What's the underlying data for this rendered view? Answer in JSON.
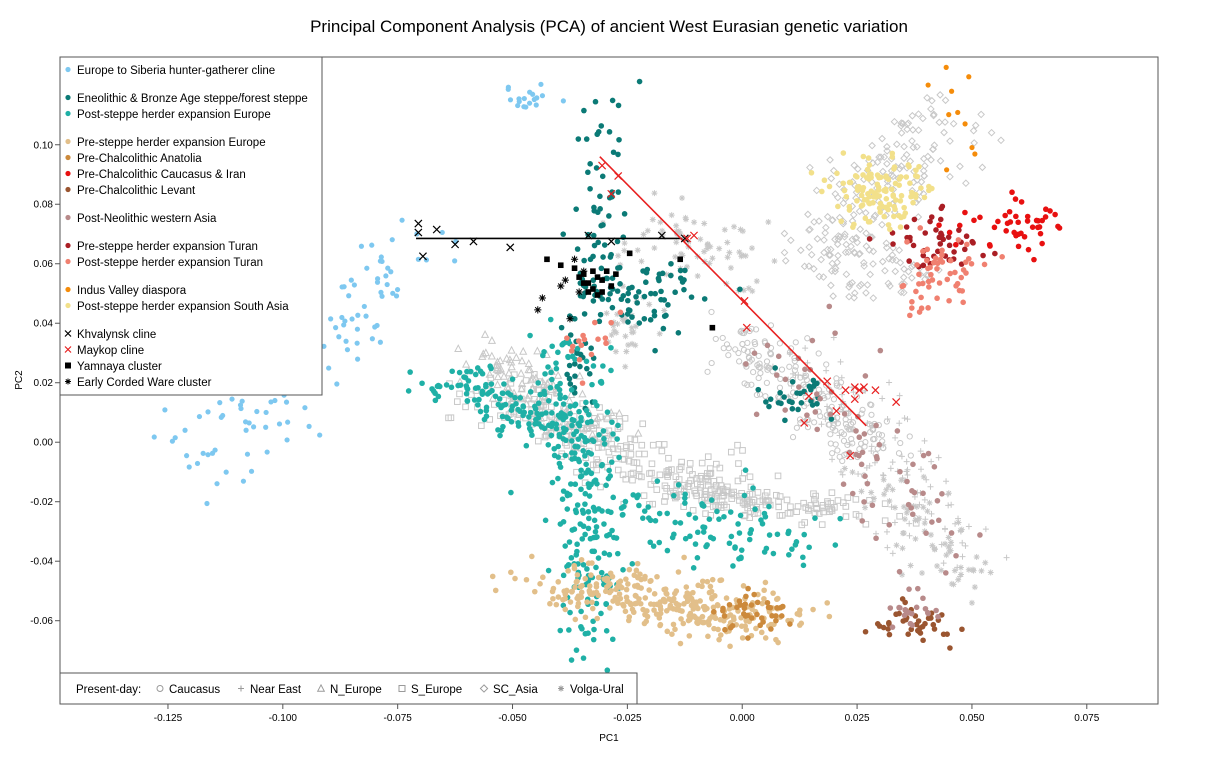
{
  "chart_data": {
    "type": "scatter",
    "title": "Principal Component Analysis (PCA) of ancient West Eurasian genetic variation",
    "xlabel": "PC1",
    "ylabel": "PC2",
    "xlim": [
      -0.1485,
      0.0905
    ],
    "ylim": [
      -0.088,
      0.1295
    ],
    "xticks": [
      -0.125,
      -0.1,
      -0.075,
      -0.05,
      -0.025,
      0.0,
      0.025,
      0.05,
      0.075
    ],
    "xtick_labels": [
      "-0.125",
      "-0.100",
      "-0.075",
      "-0.050",
      "-0.025",
      "0.000",
      "0.025",
      "0.050",
      "0.075"
    ],
    "yticks": [
      -0.06,
      -0.04,
      -0.02,
      0.0,
      0.02,
      0.04,
      0.06,
      0.08,
      0.1
    ],
    "ytick_labels": [
      "-0.06",
      "-0.04",
      "-0.02",
      "0.00",
      "0.02",
      "0.04",
      "0.06",
      "0.08",
      "0.10"
    ],
    "grid": false,
    "legend_position": "top-left",
    "legend": [
      {
        "group": 1,
        "label": "Europe to Siberia hunter-gatherer cline",
        "marker": "circle",
        "color": "#7ec8f0"
      },
      {
        "group": 2,
        "label": "Eneolithic & Bronze Age steppe/forest steppe",
        "marker": "circle",
        "color": "#0b7a76"
      },
      {
        "group": 2,
        "label": "Post-steppe herder expansion Europe",
        "marker": "circle",
        "color": "#1fb0a6"
      },
      {
        "group": 3,
        "label": "Pre-steppe herder expansion Europe",
        "marker": "circle",
        "color": "#e2bf8a"
      },
      {
        "group": 3,
        "label": "Pre-Chalcolithic Anatolia",
        "marker": "circle",
        "color": "#cc8a3c"
      },
      {
        "group": 3,
        "label": "Pre-Chalcolithic Caucasus & Iran",
        "marker": "circle",
        "color": "#e81010"
      },
      {
        "group": 3,
        "label": "Pre-Chalcolithic Levant",
        "marker": "circle",
        "color": "#9a5530"
      },
      {
        "group": 4,
        "label": "Post-Neolithic western Asia",
        "marker": "circle",
        "color": "#b88a8a"
      },
      {
        "group": 5,
        "label": "Pre-steppe herder expansion Turan",
        "marker": "circle",
        "color": "#aa1e24"
      },
      {
        "group": 5,
        "label": "Post-steppe herder expansion Turan",
        "marker": "circle",
        "color": "#f08070"
      },
      {
        "group": 6,
        "label": "Indus Valley diaspora",
        "marker": "circle",
        "color": "#f58c0a"
      },
      {
        "group": 6,
        "label": "Post-steppe herder expansion South Asia",
        "marker": "circle",
        "color": "#f2e08a"
      },
      {
        "group": 7,
        "label": "Khvalynsk cline",
        "marker": "x",
        "color": "#000000"
      },
      {
        "group": 7,
        "label": "Maykop cline",
        "marker": "x",
        "color": "#e82020"
      },
      {
        "group": 7,
        "label": "Yamnaya cluster",
        "marker": "square",
        "color": "#000000"
      },
      {
        "group": 7,
        "label": "Early Corded Ware cluster",
        "marker": "asterisk",
        "color": "#000000"
      }
    ],
    "present_day_legend": {
      "label": "Present-day:",
      "items": [
        {
          "label": "Caucasus",
          "marker": "circle-open",
          "color": "#b4b4b4"
        },
        {
          "label": "Near East",
          "marker": "plus",
          "color": "#b4b4b4"
        },
        {
          "label": "N_Europe",
          "marker": "triangle-open",
          "color": "#b4b4b4"
        },
        {
          "label": "S_Europe",
          "marker": "square-open",
          "color": "#b4b4b4"
        },
        {
          "label": "SC_Asia",
          "marker": "diamond-open",
          "color": "#b4b4b4"
        },
        {
          "label": "Volga-Ural",
          "marker": "asterisk",
          "color": "#b4b4b4"
        }
      ]
    },
    "lines": [
      {
        "name": "Khvalynsk cline",
        "color": "#000000",
        "x": [
          -0.071,
          -0.013
        ],
        "y": [
          0.0685,
          0.0685
        ]
      },
      {
        "name": "Maykop cline",
        "color": "#e82020",
        "x": [
          -0.031,
          0.027
        ],
        "y": [
          0.096,
          0.0055
        ]
      }
    ],
    "series": [
      {
        "label": "Khvalynsk cline",
        "marker": "x",
        "color": "#000000",
        "x": [
          -0.0705,
          -0.0705,
          -0.0665,
          -0.0695,
          -0.0625,
          -0.0585,
          -0.0505,
          -0.0335,
          -0.0285,
          -0.0175,
          -0.0125
        ],
        "y": [
          0.0735,
          0.0705,
          0.0715,
          0.0625,
          0.0665,
          0.0675,
          0.0655,
          0.0695,
          0.0675,
          0.0695,
          0.0685
        ]
      },
      {
        "label": "Maykop cline",
        "marker": "x",
        "color": "#e82020",
        "x": [
          -0.0305,
          -0.027,
          -0.0285,
          -0.012,
          -0.0105,
          0.0005,
          0.001,
          0.0145,
          0.0185,
          0.0135,
          0.0225,
          0.0245,
          0.0255,
          0.0265,
          0.029,
          0.0245,
          0.0235,
          0.0205,
          0.0335
        ],
        "y": [
          0.093,
          0.0895,
          0.0835,
          0.0685,
          0.0695,
          0.0475,
          0.0385,
          0.0155,
          0.0205,
          0.0065,
          0.0175,
          0.0185,
          0.0175,
          0.0185,
          0.0175,
          0.0145,
          -0.0045,
          0.0105,
          0.0135
        ]
      },
      {
        "label": "Yamnaya cluster",
        "marker": "square",
        "color": "#000000",
        "x": [
          -0.0425,
          -0.0395,
          -0.0365,
          -0.0345,
          -0.0325,
          -0.0315,
          -0.0305,
          -0.0295,
          -0.0345,
          -0.0355,
          -0.0335,
          -0.0315,
          -0.0285,
          -0.0275,
          -0.0305,
          -0.0325,
          -0.0335,
          -0.0245,
          -0.0135,
          -0.0065
        ],
        "y": [
          0.0615,
          0.0595,
          0.0585,
          0.0565,
          0.0575,
          0.0555,
          0.0545,
          0.0575,
          0.0535,
          0.0555,
          0.0505,
          0.0495,
          0.0525,
          0.0565,
          0.0505,
          0.0515,
          0.0535,
          0.0635,
          0.0615,
          0.0385
        ]
      },
      {
        "label": "Early Corded Ware cluster",
        "marker": "asterisk",
        "color": "#000000",
        "x": [
          -0.0435,
          -0.0445,
          -0.0395,
          -0.0375,
          -0.0345,
          -0.0385,
          -0.0365,
          -0.0355
        ],
        "y": [
          0.0485,
          0.0445,
          0.0525,
          0.0415,
          0.0575,
          0.0545,
          0.0615,
          0.0505
        ]
      }
    ]
  }
}
